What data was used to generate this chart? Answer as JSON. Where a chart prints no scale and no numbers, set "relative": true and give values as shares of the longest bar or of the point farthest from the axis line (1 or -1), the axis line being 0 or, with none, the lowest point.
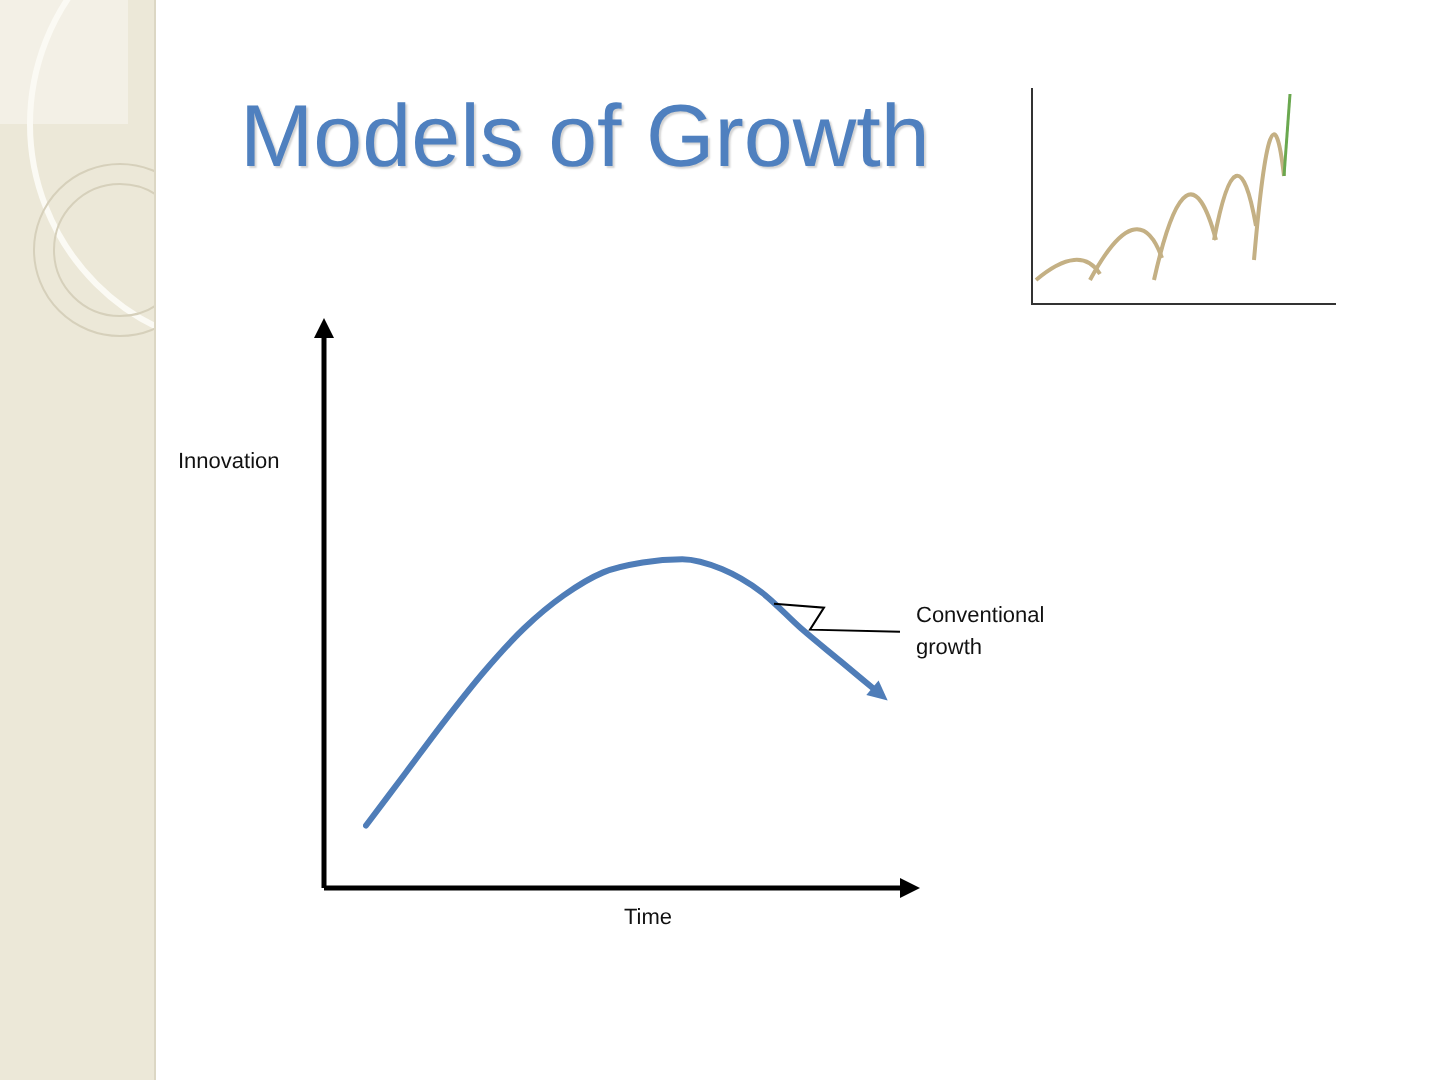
{
  "chart_data": {
    "type": "line",
    "title": "Models of Growth",
    "xlabel": "Time",
    "ylabel": "Innovation",
    "relative": true,
    "categories": [
      null,
      null,
      null,
      null,
      null,
      null,
      null,
      null,
      null,
      null,
      null,
      null,
      null,
      null
    ],
    "series": [
      {
        "color": "#4f7db8",
        "values": [
          0.19,
          0.35,
          0.51,
          0.66,
          0.79,
          0.89,
          0.96,
          0.99,
          1,
          0.97,
          0.9,
          0.79,
          0.69,
          0.59
        ]
      }
    ],
    "annotations": [
      "Conventional growth"
    ],
    "marker": "none",
    "tick_labels": false
  }
}
